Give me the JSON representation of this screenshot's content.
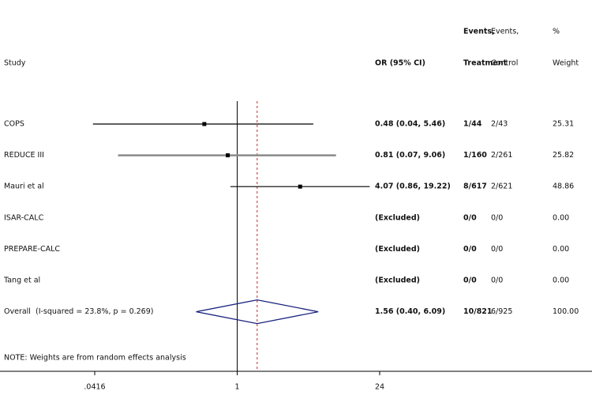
{
  "chart_data": {
    "type": "forest",
    "columns": {
      "study": "Study",
      "or": "OR (95% CI)",
      "treatment": [
        "Events,",
        "Treatment"
      ],
      "control": [
        "Events,",
        "Control"
      ],
      "weight": [
        "%",
        "Weight"
      ]
    },
    "studies": [
      "COPS",
      "REDUCE III",
      "Mauri et al",
      "ISAR-CALC",
      "PREPARE-CALC",
      "Tang et al"
    ],
    "or": [
      0.48,
      0.81,
      4.07,
      null,
      null,
      null
    ],
    "lo": [
      0.04,
      0.07,
      0.86,
      null,
      null,
      null
    ],
    "hi": [
      5.46,
      9.06,
      19.22,
      null,
      null,
      null
    ],
    "value_labels": [
      "0.48 (0.04, 5.46)",
      "0.81 (0.07, 9.06)",
      "4.07 (0.86, 19.22)",
      "(Excluded)",
      "(Excluded)",
      "(Excluded)"
    ],
    "events_treatment": [
      "1/44",
      "1/160",
      "8/617",
      "0/0",
      "0/0",
      "0/0"
    ],
    "events_control": [
      "2/43",
      "2/261",
      "2/621",
      "0/0",
      "0/0",
      "0/0"
    ],
    "weights": [
      "25.31",
      "25.82",
      "48.86",
      "0.00",
      "0.00",
      "0.00"
    ],
    "colors": [
      "#000000",
      "#8a8a8a",
      "#000000",
      "#000000",
      "#000000",
      "#000000"
    ],
    "overall": {
      "label": "Overall  (I-squared = 23.8%, p = 0.269)",
      "or": 1.56,
      "lo": 0.4,
      "hi": 6.09,
      "value_label": "1.56 (0.40, 6.09)",
      "events_treatment": "10/821",
      "events_control": "6/925",
      "weight": "100.00",
      "color": "#1a237e",
      "line_color": "#c62828"
    },
    "note": "NOTE: Weights are from random effects analysis",
    "log_x": true,
    "xlim": [
      0.0416,
      24
    ],
    "xticks": [
      {
        "value": 0.0416,
        "label": ".0416"
      },
      1,
      24
    ]
  }
}
